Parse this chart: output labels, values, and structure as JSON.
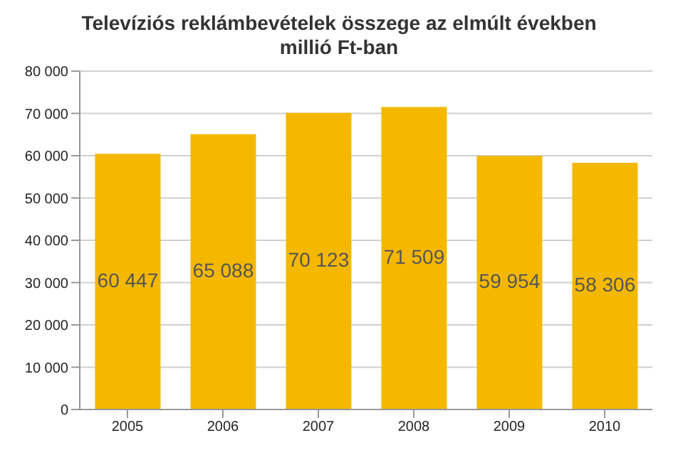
{
  "chart_data": {
    "type": "bar",
    "title": "Televíziós reklámbevételek összege az elmúlt években\nmillió Ft-ban",
    "categories": [
      "2005",
      "2006",
      "2007",
      "2008",
      "2009",
      "2010"
    ],
    "values": [
      60447,
      65088,
      70123,
      71509,
      59954,
      58306
    ],
    "value_labels": [
      "60 447",
      "65 088",
      "70 123",
      "71 509",
      "59 954",
      "58 306"
    ],
    "color": "#f4b800",
    "ylim": [
      0,
      80000
    ],
    "yticks": [
      {
        "value": 0,
        "label": "0"
      },
      {
        "value": 10000,
        "label": "10 000"
      },
      {
        "value": 20000,
        "label": "20 000"
      },
      {
        "value": 30000,
        "label": "30 000"
      },
      {
        "value": 40000,
        "label": "40 000"
      },
      {
        "value": 50000,
        "label": "50 000"
      },
      {
        "value": 60000,
        "label": "60 000"
      },
      {
        "value": 70000,
        "label": "70 000"
      },
      {
        "value": 80000,
        "label": "80 000"
      }
    ],
    "grid": "y"
  }
}
